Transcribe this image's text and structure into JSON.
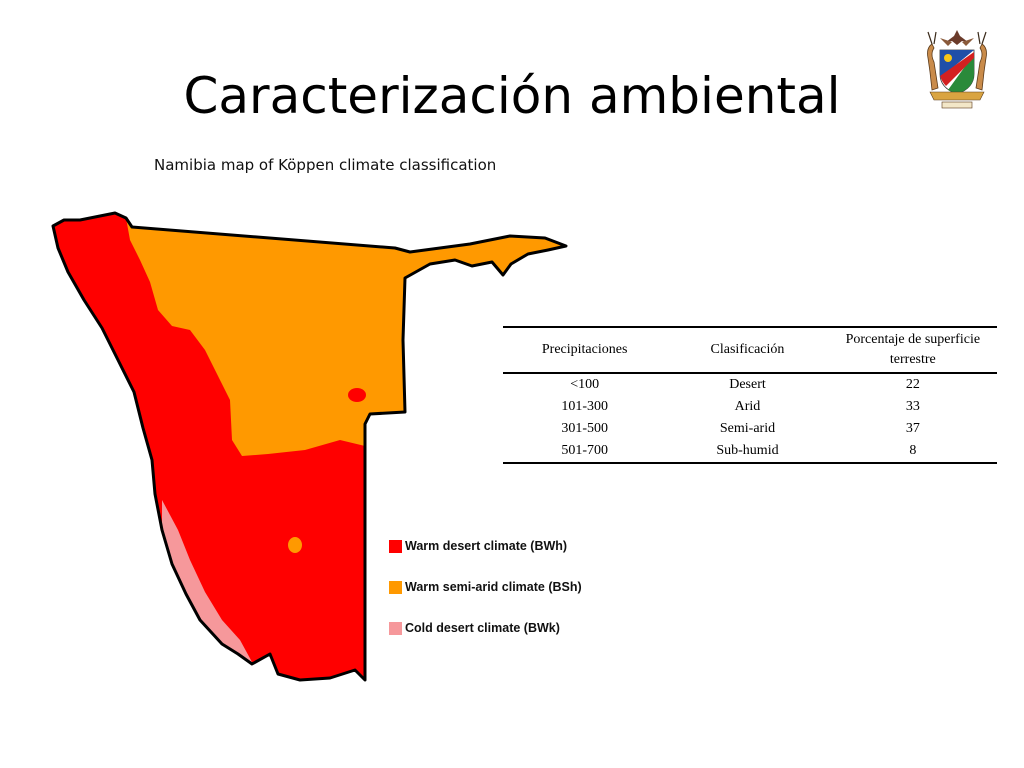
{
  "slide": {
    "title": "Caracterización ambiental"
  },
  "map": {
    "title": "Namibia map of Köppen climate classification",
    "colors": {
      "warm_desert": "#ff0000",
      "warm_semi_arid": "#ff9900",
      "cold_desert": "#f6989b",
      "outline": "#000000"
    },
    "legend": [
      {
        "label": "Warm desert climate (BWh)",
        "color": "#ff0000"
      },
      {
        "label": "Warm semi-arid climate (BSh)",
        "color": "#ff9900"
      },
      {
        "label": "Cold desert climate (BWk)",
        "color": "#f6989b"
      }
    ]
  },
  "table": {
    "headers": [
      "Precipitaciones",
      "Clasificación",
      "Porcentaje de superficie terrestre"
    ],
    "rows": [
      [
        "<100",
        "Desert",
        "22"
      ],
      [
        "101-300",
        "Arid",
        "33"
      ],
      [
        "301-500",
        "Semi-arid",
        "37"
      ],
      [
        "501-700",
        "Sub-humid",
        "8"
      ]
    ]
  },
  "emblem": {
    "icon": "coat-of-arms-icon"
  }
}
